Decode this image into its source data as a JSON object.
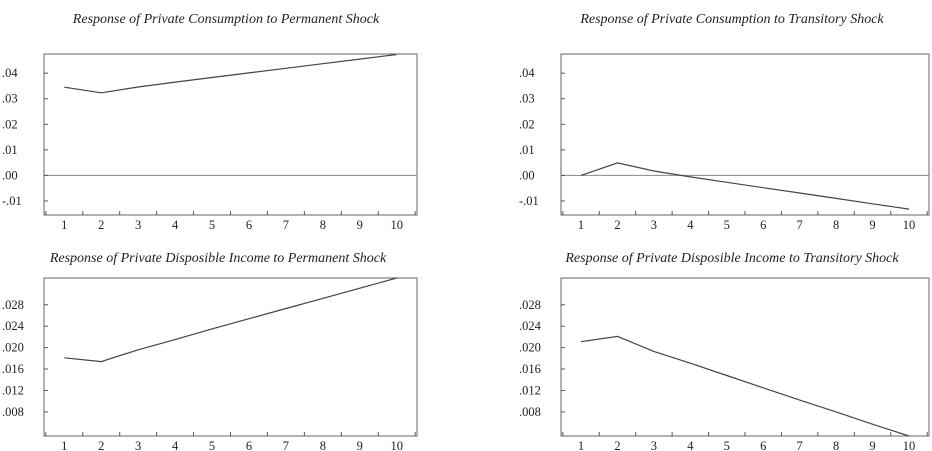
{
  "chart_data": [
    {
      "type": "line",
      "title": "Response of Private Consumption to Permanent Shock",
      "x": [
        1,
        2,
        3,
        4,
        5,
        6,
        7,
        8,
        9,
        10
      ],
      "series": [
        {
          "values": [
            0.0345,
            0.0323,
            0.0346,
            0.0365,
            0.0383,
            0.0401,
            0.0419,
            0.0437,
            0.0455,
            0.0473
          ]
        }
      ],
      "ylim": [
        -0.0155,
        0.0475
      ],
      "yticks": [
        0.04,
        0.03,
        0.02,
        0.01,
        0.0,
        -0.01
      ],
      "ytick_labels": [
        ".04",
        ".03",
        ".02",
        ".01",
        ".00",
        "-.01"
      ],
      "zero_line": true,
      "grid": false
    },
    {
      "type": "line",
      "title": "Response of Private Consumption to Transitory Shock",
      "x": [
        1,
        2,
        3,
        4,
        5,
        6,
        7,
        8,
        9,
        10
      ],
      "series": [
        {
          "values": [
            0.0,
            0.0049,
            0.0017,
            -0.0006,
            -0.0027,
            -0.0048,
            -0.0069,
            -0.009,
            -0.0111,
            -0.0132
          ]
        }
      ],
      "ylim": [
        -0.0155,
        0.0475
      ],
      "yticks": [
        0.04,
        0.03,
        0.02,
        0.01,
        0.0,
        -0.01
      ],
      "ytick_labels": [
        ".04",
        ".03",
        ".02",
        ".01",
        ".00",
        "-.01"
      ],
      "zero_line": true,
      "grid": false
    },
    {
      "type": "line",
      "title": "Response of Private Disposible Income to Permanent Shock",
      "x": [
        1,
        2,
        3,
        4,
        5,
        6,
        7,
        8,
        9,
        10
      ],
      "series": [
        {
          "values": [
            0.0181,
            0.0174,
            0.0196,
            0.0215,
            0.0235,
            0.0254,
            0.0273,
            0.0292,
            0.0311,
            0.033
          ]
        }
      ],
      "ylim": [
        0.0035,
        0.033
      ],
      "yticks": [
        0.028,
        0.024,
        0.02,
        0.016,
        0.012,
        0.008
      ],
      "ytick_labels": [
        ".028",
        ".024",
        ".020",
        ".016",
        ".012",
        ".008"
      ],
      "zero_line": false,
      "grid": false
    },
    {
      "type": "line",
      "title": "Response of Private Disposible Income to Transitory Shock",
      "x": [
        1,
        2,
        3,
        4,
        5,
        6,
        7,
        8,
        9,
        10
      ],
      "series": [
        {
          "values": [
            0.0211,
            0.0221,
            0.0193,
            0.0171,
            0.0148,
            0.0125,
            0.0102,
            0.008,
            0.0057,
            0.0035
          ]
        }
      ],
      "ylim": [
        0.0035,
        0.033
      ],
      "yticks": [
        0.028,
        0.024,
        0.02,
        0.016,
        0.012,
        0.008
      ],
      "ytick_labels": [
        ".028",
        ".024",
        ".020",
        ".016",
        ".012",
        ".008"
      ],
      "zero_line": false,
      "grid": false
    }
  ]
}
